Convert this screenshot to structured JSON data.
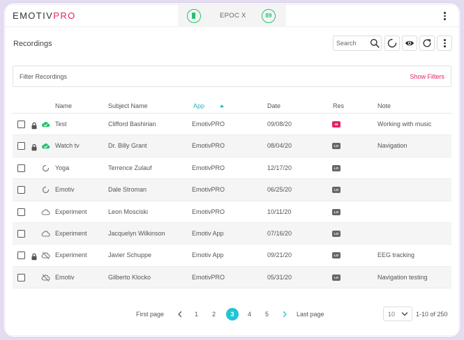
{
  "app": {
    "logo_main": "EMOTIV",
    "logo_accent": "PRO",
    "device_name": "EPOC X",
    "signal_value": "89"
  },
  "page": {
    "title": "Recordings"
  },
  "toolbar": {
    "search_placeholder": "Search"
  },
  "filter": {
    "label": "Filter Recordings",
    "toggle_label": "Show Filters"
  },
  "table": {
    "columns": {
      "name": "Name",
      "subject": "Subject Name",
      "app": "App",
      "date": "Date",
      "res": "Res",
      "note": "Note"
    },
    "sorted_column": "App",
    "rows": [
      {
        "locked": true,
        "status": "cloud-synced-icon",
        "name": "Test",
        "subject": "Clifford Bashirian",
        "app": "EmotivPRO",
        "date": "09/08/20",
        "res": "HI",
        "res_color": "#e4235f",
        "note": "Working with music"
      },
      {
        "locked": true,
        "status": "cloud-synced-icon",
        "name": "Watch tv",
        "subject": "Dr. Billy Grant",
        "app": "EmotivPRO",
        "date": "08/04/20",
        "res": "LO",
        "res_color": "#666666",
        "note": "Navigation"
      },
      {
        "locked": false,
        "status": "syncing-icon",
        "name": "Yoga",
        "subject": "Terrence Zulauf",
        "app": "EmotivPRO",
        "date": "12/17/20",
        "res": "LO",
        "res_color": "#666666",
        "note": ""
      },
      {
        "locked": false,
        "status": "syncing-icon",
        "name": "Emotiv",
        "subject": "Dale Stroman",
        "app": "EmotivPRO",
        "date": "06/25/20",
        "res": "LO",
        "res_color": "#666666",
        "note": ""
      },
      {
        "locked": false,
        "status": "cloud-outline-icon",
        "name": "Experiment",
        "subject": "Leon Mosciski",
        "app": "EmotivPRO",
        "date": "10/11/20",
        "res": "LO",
        "res_color": "#666666",
        "note": ""
      },
      {
        "locked": false,
        "status": "cloud-outline-icon",
        "name": "Experiment",
        "subject": "Jacquelyn Wilkinson",
        "app": "Emotiv App",
        "date": "07/16/20",
        "res": "LO",
        "res_color": "#666666",
        "note": ""
      },
      {
        "locked": true,
        "status": "cloud-off-icon",
        "name": "Experiment",
        "subject": "Javier Schuppe",
        "app": "Emotiv App",
        "date": "09/21/20",
        "res": "LO",
        "res_color": "#666666",
        "note": "EEG tracking"
      },
      {
        "locked": false,
        "status": "cloud-off-icon",
        "name": "Emotiv",
        "subject": "Gilberto Klocko",
        "app": "EmotivPRO",
        "date": "05/31/20",
        "res": "LO",
        "res_color": "#666666",
        "note": "Navigation testing"
      }
    ]
  },
  "pagination": {
    "first_label": "First page",
    "last_label": "Last page",
    "pages": [
      "1",
      "2",
      "3",
      "4",
      "5"
    ],
    "current": "3",
    "per_page": "10",
    "range_text": "1-10 of 250"
  },
  "colors": {
    "accent_pink": "#e4235f",
    "accent_teal": "#22c4d4",
    "status_green": "#25c26e"
  }
}
